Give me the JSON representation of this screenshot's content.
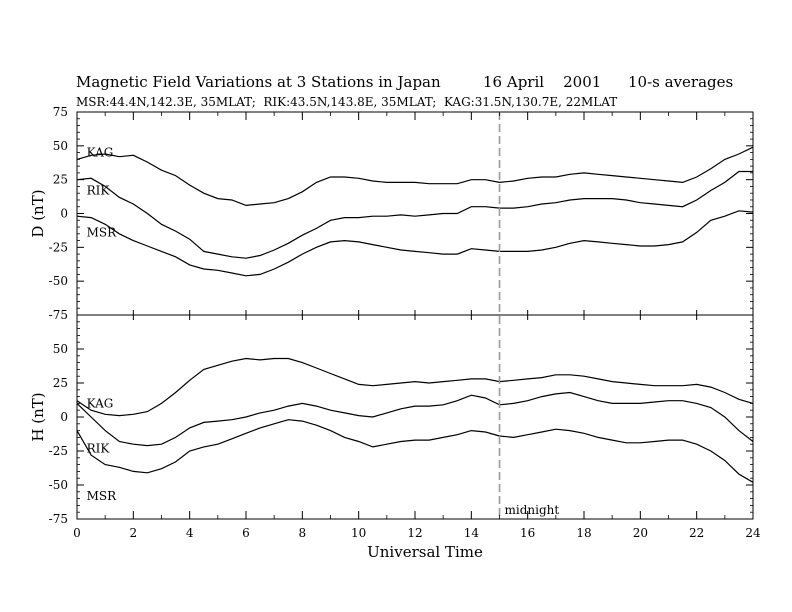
{
  "chart_data": {
    "type": "line",
    "title": {
      "main": "Magnetic Field Variations at 3 Stations in Japan",
      "date": "16 April    2001",
      "avg": "10-s averages"
    },
    "subtitle": "MSR:44.4N,142.3E, 35MLAT;  RIK:43.5N,143.8E, 35MLAT;  KAG:31.5N,130.7E, 22MLAT",
    "xlabel": "Universal Time",
    "xlim": [
      0,
      24
    ],
    "xticks": [
      0,
      2,
      4,
      6,
      8,
      10,
      12,
      14,
      16,
      18,
      20,
      22,
      24
    ],
    "marker": {
      "x": 15,
      "label": "midnight"
    },
    "panels": [
      {
        "ylabel": "D (nT)",
        "ylim": [
          -75,
          75
        ],
        "yticks": [
          75,
          50,
          25,
          0,
          -25,
          -50,
          -75
        ],
        "series": [
          {
            "name": "KAG",
            "label_pos": [
              0.2,
              45
            ],
            "x": [
              0,
              0.5,
              1,
              1.5,
              2,
              2.5,
              3,
              3.5,
              4,
              4.5,
              5,
              5.5,
              6,
              6.5,
              7,
              7.5,
              8,
              8.5,
              9,
              9.5,
              10,
              10.5,
              11,
              11.5,
              12,
              12.5,
              13,
              13.5,
              14,
              14.5,
              15,
              15.5,
              16,
              16.5,
              17,
              17.5,
              18,
              18.5,
              19,
              19.5,
              20,
              20.5,
              21,
              21.5,
              22,
              22.5,
              23,
              23.5,
              24
            ],
            "values": [
              40,
              43,
              44,
              42,
              43,
              38,
              32,
              28,
              21,
              15,
              11,
              10,
              6,
              7,
              8,
              11,
              16,
              23,
              27,
              27,
              26,
              24,
              23,
              23,
              23,
              22,
              22,
              22,
              25,
              25,
              23,
              24,
              26,
              27,
              27,
              29,
              30,
              29,
              28,
              27,
              26,
              25,
              24,
              23,
              27,
              33,
              40,
              44,
              49
            ]
          },
          {
            "name": "RIK",
            "label_pos": [
              0.2,
              17
            ],
            "x": [
              0,
              0.5,
              1,
              1.5,
              2,
              2.5,
              3,
              3.5,
              4,
              4.5,
              5,
              5.5,
              6,
              6.5,
              7,
              7.5,
              8,
              8.5,
              9,
              9.5,
              10,
              10.5,
              11,
              11.5,
              12,
              12.5,
              13,
              13.5,
              14,
              14.5,
              15,
              15.5,
              16,
              16.5,
              17,
              17.5,
              18,
              18.5,
              19,
              19.5,
              20,
              20.5,
              21,
              21.5,
              22,
              22.5,
              23,
              23.5,
              24
            ],
            "values": [
              25,
              26,
              20,
              12,
              7,
              0,
              -8,
              -13,
              -19,
              -28,
              -30,
              -32,
              -33,
              -31,
              -27,
              -22,
              -16,
              -11,
              -5,
              -3,
              -3,
              -2,
              -2,
              -1,
              -2,
              -1,
              0,
              0,
              5,
              5,
              4,
              4,
              5,
              7,
              8,
              10,
              11,
              11,
              11,
              10,
              8,
              7,
              6,
              5,
              10,
              17,
              23,
              31,
              31
            ]
          },
          {
            "name": "MSR",
            "label_pos": [
              0.2,
              -14
            ],
            "x": [
              0,
              0.5,
              1,
              1.5,
              2,
              2.5,
              3,
              3.5,
              4,
              4.5,
              5,
              5.5,
              6,
              6.5,
              7,
              7.5,
              8,
              8.5,
              9,
              9.5,
              10,
              10.5,
              11,
              11.5,
              12,
              12.5,
              13,
              13.5,
              14,
              14.5,
              15,
              15.5,
              16,
              16.5,
              17,
              17.5,
              18,
              18.5,
              19,
              19.5,
              20,
              20.5,
              21,
              21.5,
              22,
              22.5,
              23,
              23.5,
              24
            ],
            "values": [
              -2,
              -3,
              -8,
              -15,
              -20,
              -24,
              -28,
              -32,
              -38,
              -41,
              -42,
              -44,
              -46,
              -45,
              -41,
              -36,
              -30,
              -25,
              -21,
              -20,
              -21,
              -23,
              -25,
              -27,
              -28,
              -29,
              -30,
              -30,
              -26,
              -27,
              -28,
              -28,
              -28,
              -27,
              -25,
              -22,
              -20,
              -21,
              -22,
              -23,
              -24,
              -24,
              -23,
              -21,
              -14,
              -5,
              -2,
              2,
              1
            ]
          }
        ]
      },
      {
        "ylabel": "H (nT)",
        "ylim": [
          -75,
          75
        ],
        "yticks": [
          50,
          25,
          0,
          -25,
          -50,
          -75
        ],
        "series": [
          {
            "name": "KAG",
            "label_pos": [
              0.2,
              10
            ],
            "x": [
              0,
              0.5,
              1,
              1.5,
              2,
              2.5,
              3,
              3.5,
              4,
              4.5,
              5,
              5.5,
              6,
              6.5,
              7,
              7.5,
              8,
              8.5,
              9,
              9.5,
              10,
              10.5,
              11,
              11.5,
              12,
              12.5,
              13,
              13.5,
              14,
              14.5,
              15,
              15.5,
              16,
              16.5,
              17,
              17.5,
              18,
              18.5,
              19,
              19.5,
              20,
              20.5,
              21,
              21.5,
              22,
              22.5,
              23,
              23.5,
              24
            ],
            "values": [
              12,
              5,
              2,
              1,
              2,
              4,
              10,
              18,
              27,
              35,
              38,
              41,
              43,
              42,
              43,
              43,
              40,
              36,
              32,
              28,
              24,
              23,
              24,
              25,
              26,
              25,
              26,
              27,
              28,
              28,
              26,
              27,
              28,
              29,
              31,
              31,
              30,
              28,
              26,
              25,
              24,
              23,
              23,
              23,
              24,
              22,
              18,
              13,
              10
            ]
          },
          {
            "name": "RIK",
            "label_pos": [
              0.2,
              -23
            ],
            "x": [
              0,
              0.5,
              1,
              1.5,
              2,
              2.5,
              3,
              3.5,
              4,
              4.5,
              5,
              5.5,
              6,
              6.5,
              7,
              7.5,
              8,
              8.5,
              9,
              9.5,
              10,
              10.5,
              11,
              11.5,
              12,
              12.5,
              13,
              13.5,
              14,
              14.5,
              15,
              15.5,
              16,
              16.5,
              17,
              17.5,
              18,
              18.5,
              19,
              19.5,
              20,
              20.5,
              21,
              21.5,
              22,
              22.5,
              23,
              23.5,
              24
            ],
            "values": [
              10,
              0,
              -10,
              -18,
              -20,
              -21,
              -20,
              -15,
              -8,
              -4,
              -3,
              -2,
              0,
              3,
              5,
              8,
              10,
              8,
              5,
              3,
              1,
              0,
              3,
              6,
              8,
              8,
              9,
              12,
              16,
              14,
              9,
              10,
              12,
              15,
              17,
              18,
              15,
              12,
              10,
              10,
              10,
              11,
              12,
              12,
              10,
              7,
              0,
              -10,
              -18
            ]
          },
          {
            "name": "MSR",
            "label_pos": [
              0.2,
              -58
            ],
            "x": [
              0,
              0.5,
              1,
              1.5,
              2,
              2.5,
              3,
              3.5,
              4,
              4.5,
              5,
              5.5,
              6,
              6.5,
              7,
              7.5,
              8,
              8.5,
              9,
              9.5,
              10,
              10.5,
              11,
              11.5,
              12,
              12.5,
              13,
              13.5,
              14,
              14.5,
              15,
              15.5,
              16,
              16.5,
              17,
              17.5,
              18,
              18.5,
              19,
              19.5,
              20,
              20.5,
              21,
              21.5,
              22,
              22.5,
              23,
              23.5,
              24
            ],
            "values": [
              -10,
              -28,
              -35,
              -37,
              -40,
              -41,
              -38,
              -33,
              -25,
              -22,
              -20,
              -16,
              -12,
              -8,
              -5,
              -2,
              -3,
              -6,
              -10,
              -15,
              -18,
              -22,
              -20,
              -18,
              -17,
              -17,
              -15,
              -13,
              -10,
              -11,
              -14,
              -15,
              -13,
              -11,
              -9,
              -10,
              -12,
              -15,
              -17,
              -19,
              -19,
              -18,
              -17,
              -17,
              -20,
              -25,
              -32,
              -42,
              -48
            ]
          }
        ]
      }
    ]
  }
}
